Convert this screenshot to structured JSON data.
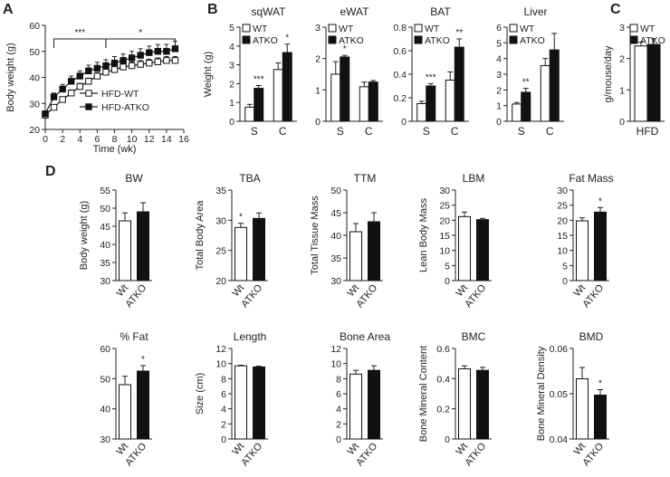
{
  "panel_labels": [
    "A",
    "B",
    "C",
    "D"
  ],
  "chart_data": [
    {
      "id": "A",
      "type": "line",
      "xlabel": "Time (wk)",
      "ylabel": "Body weight (g)",
      "xlim": [
        0,
        16
      ],
      "ylim": [
        20,
        60
      ],
      "xticks": [
        0,
        2,
        4,
        6,
        8,
        10,
        12,
        14,
        16
      ],
      "yticks": [
        20,
        30,
        40,
        50,
        60
      ],
      "x": [
        0,
        1,
        2,
        3,
        4,
        5,
        6,
        7,
        8,
        9,
        10,
        11,
        12,
        13,
        14,
        15
      ],
      "series": [
        {
          "name": "HFD-WT",
          "marker": "open-square",
          "values": [
            25.5,
            28.5,
            31.5,
            34.0,
            36.5,
            38.5,
            40.5,
            42.0,
            43.0,
            44.0,
            44.5,
            45.0,
            45.5,
            46.0,
            46.5,
            46.5
          ],
          "errors": [
            1,
            1,
            1,
            1.2,
            1.2,
            1.2,
            1.3,
            1.5,
            1.5,
            1.5,
            1.5,
            1.5,
            1.5,
            1.5,
            1.5,
            1.5
          ]
        },
        {
          "name": "HFD-ATKO",
          "marker": "filled-square",
          "values": [
            26.0,
            32.5,
            35.5,
            38.5,
            40.5,
            42.5,
            43.5,
            44.5,
            45.5,
            46.5,
            47.5,
            48.5,
            49.5,
            50.0,
            50.0,
            51.0
          ],
          "errors": [
            1,
            1.5,
            1.8,
            2,
            2,
            2.2,
            2.3,
            2.3,
            2.5,
            2.5,
            2.5,
            2.5,
            2.5,
            2.6,
            2.7,
            2.9
          ]
        }
      ],
      "annotations": [
        {
          "text": "***",
          "x_range": [
            1,
            7
          ]
        },
        {
          "text": "*",
          "x_range": [
            7,
            15
          ]
        }
      ],
      "legend": "bottom-right"
    },
    {
      "id": "B1",
      "type": "bar",
      "title": "sqWAT",
      "ylabel": "Weight (g)",
      "categories": [
        "S",
        "C"
      ],
      "ylim": [
        0,
        5
      ],
      "yticks": [
        0,
        1,
        2,
        3,
        4,
        5
      ],
      "series": [
        {
          "name": "WT",
          "values": [
            0.75,
            2.75
          ],
          "errors": [
            0.15,
            0.35
          ]
        },
        {
          "name": "ATKO",
          "values": [
            1.75,
            3.65
          ],
          "errors": [
            0.15,
            0.45
          ]
        }
      ],
      "stars": [
        {
          "text": "***",
          "category": 0
        },
        {
          "text": "*",
          "category": 1
        }
      ]
    },
    {
      "id": "B2",
      "type": "bar",
      "title": "eWAT",
      "categories": [
        "S",
        "C"
      ],
      "ylim": [
        0,
        3
      ],
      "yticks": [
        0,
        1,
        2,
        3
      ],
      "series": [
        {
          "name": "WT",
          "values": [
            1.5,
            1.1
          ],
          "errors": [
            0.4,
            0.15
          ]
        },
        {
          "name": "ATKO",
          "values": [
            2.05,
            1.25
          ],
          "errors": [
            0.05,
            0.05
          ]
        }
      ],
      "stars": [
        {
          "text": "*",
          "category": 0
        }
      ]
    },
    {
      "id": "B3",
      "type": "bar",
      "title": "BAT",
      "categories": [
        "S",
        "C"
      ],
      "ylim": [
        0,
        0.8
      ],
      "yticks": [
        0,
        0.2,
        0.4,
        0.6,
        0.8
      ],
      "series": [
        {
          "name": "WT",
          "values": [
            0.15,
            0.35
          ],
          "errors": [
            0.02,
            0.07
          ]
        },
        {
          "name": "ATKO",
          "values": [
            0.3,
            0.63
          ],
          "errors": [
            0.02,
            0.07
          ]
        }
      ],
      "stars": [
        {
          "text": "***",
          "category": 0
        },
        {
          "text": "**",
          "category": 1
        }
      ]
    },
    {
      "id": "B4",
      "type": "bar",
      "title": "Liver",
      "categories": [
        "S",
        "C"
      ],
      "ylim": [
        0,
        6
      ],
      "yticks": [
        0,
        1,
        2,
        3,
        4,
        5,
        6
      ],
      "series": [
        {
          "name": "WT",
          "values": [
            1.1,
            3.55
          ],
          "errors": [
            0.1,
            0.45
          ]
        },
        {
          "name": "ATKO",
          "values": [
            1.85,
            4.55
          ],
          "errors": [
            0.25,
            1.05
          ]
        }
      ],
      "stars": [
        {
          "text": "**",
          "category": 0
        }
      ]
    },
    {
      "id": "C",
      "type": "bar",
      "ylabel": "g/mouse/day",
      "categories": [
        "HFD"
      ],
      "ylim": [
        0,
        3
      ],
      "yticks": [
        0,
        1,
        2,
        3
      ],
      "series": [
        {
          "name": "WT",
          "values": [
            2.4
          ],
          "errors": [
            0.12
          ]
        },
        {
          "name": "ATKO",
          "values": [
            2.45
          ],
          "errors": [
            0.18
          ]
        }
      ]
    },
    {
      "id": "D1",
      "type": "bar",
      "title": "BW",
      "ylabel": "Body weight (g)",
      "categories": [
        "Wt",
        "ATKO"
      ],
      "values": [
        46.5,
        49
      ],
      "errors": [
        2.2,
        2.5
      ],
      "ylim": [
        30,
        55
      ],
      "yticks": [
        30,
        35,
        40,
        45,
        50,
        55
      ],
      "stars": []
    },
    {
      "id": "D2",
      "type": "bar",
      "title": "TBA",
      "ylabel": "Total Body Area",
      "categories": [
        "Wt",
        "ATKO"
      ],
      "values": [
        28.8,
        30.3
      ],
      "errors": [
        0.7,
        0.9
      ],
      "ylim": [
        20,
        35
      ],
      "yticks": [
        20,
        25,
        30,
        35
      ],
      "stars": [
        {
          "text": "*",
          "index": 0
        }
      ]
    },
    {
      "id": "D3",
      "type": "bar",
      "title": "TTM",
      "ylabel": "Total Tissue Mass",
      "categories": [
        "Wt",
        "ATKO"
      ],
      "values": [
        40.8,
        43
      ],
      "errors": [
        1.8,
        2
      ],
      "ylim": [
        30,
        50
      ],
      "yticks": [
        30,
        35,
        40,
        45,
        50
      ],
      "stars": []
    },
    {
      "id": "D4",
      "type": "bar",
      "title": "LBM",
      "ylabel": "Lean Body Mass",
      "categories": [
        "Wt",
        "ATKO"
      ],
      "values": [
        21.2,
        20.2
      ],
      "errors": [
        1.5,
        0.4
      ],
      "ylim": [
        0,
        30
      ],
      "yticks": [
        0,
        5,
        10,
        15,
        20,
        25,
        30
      ],
      "stars": []
    },
    {
      "id": "D5",
      "type": "bar",
      "title": "Fat Mass",
      "categories": [
        "Wt",
        "ATKO"
      ],
      "values": [
        19.8,
        22.7
      ],
      "errors": [
        1,
        1.5
      ],
      "ylim": [
        0,
        30
      ],
      "yticks": [
        0,
        5,
        10,
        15,
        20,
        25,
        30
      ],
      "stars": [
        {
          "text": "*",
          "index": 1
        }
      ]
    },
    {
      "id": "D6",
      "type": "bar",
      "title": "% Fat",
      "categories": [
        "Wt",
        "ATKO"
      ],
      "values": [
        48,
        52.5
      ],
      "errors": [
        2.8,
        1.8
      ],
      "ylim": [
        30,
        60
      ],
      "yticks": [
        30,
        40,
        50,
        60
      ],
      "stars": [
        {
          "text": "*",
          "index": 1
        }
      ]
    },
    {
      "id": "D7",
      "type": "bar",
      "title": "Length",
      "ylabel": "Size (cm)",
      "categories": [
        "Wt",
        "ATKO"
      ],
      "values": [
        9.7,
        9.55
      ],
      "errors": [
        0.08,
        0.1
      ],
      "ylim": [
        0,
        12
      ],
      "yticks": [
        0,
        2,
        4,
        6,
        8,
        10,
        12
      ],
      "stars": []
    },
    {
      "id": "D8",
      "type": "bar",
      "title": "Bone Area",
      "categories": [
        "Wt",
        "ATKO"
      ],
      "values": [
        8.6,
        9.1
      ],
      "errors": [
        0.5,
        0.6
      ],
      "ylim": [
        0,
        12
      ],
      "yticks": [
        0,
        2,
        4,
        6,
        8,
        10,
        12
      ],
      "stars": []
    },
    {
      "id": "D9",
      "type": "bar",
      "title": "BMC",
      "ylabel": "Bone Mineral Content",
      "categories": [
        "Wt",
        "ATKO"
      ],
      "values": [
        0.465,
        0.455
      ],
      "errors": [
        0.02,
        0.02
      ],
      "ylim": [
        0,
        0.6
      ],
      "yticks": [
        0,
        0.2,
        0.4,
        0.6
      ],
      "stars": []
    },
    {
      "id": "D10",
      "type": "bar",
      "title": "BMD",
      "ylabel": "Bone Mineral Density",
      "categories": [
        "Wt",
        "ATKO"
      ],
      "values": [
        0.0533,
        0.0497
      ],
      "errors": [
        0.0025,
        0.0012
      ],
      "ylim": [
        0.04,
        0.06
      ],
      "yticks": [
        0.04,
        0.05,
        0.06
      ],
      "stars": [
        {
          "text": "*",
          "index": 1
        }
      ]
    }
  ]
}
